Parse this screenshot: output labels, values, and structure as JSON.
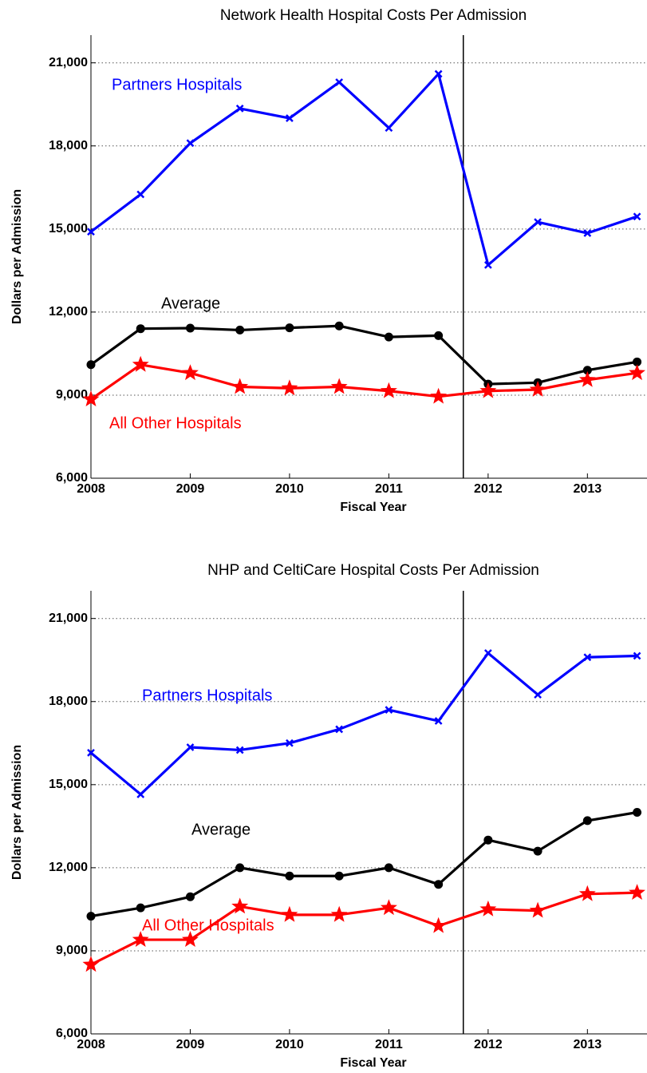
{
  "chart_data": [
    {
      "type": "line",
      "title": "Network Health Hospital Costs Per Admission",
      "xlabel": "Fiscal Year",
      "ylabel": "Dollars per Admission",
      "x": [
        2008,
        2008.5,
        2009,
        2009.5,
        2010,
        2010.5,
        2011,
        2011.5,
        2012,
        2012.5,
        2013,
        2013.5
      ],
      "xlim": [
        2008,
        2013.6
      ],
      "xticks": [
        2008,
        2009,
        2010,
        2011,
        2012,
        2013
      ],
      "ylim": [
        6000,
        22000
      ],
      "yticks": [
        {
          "value": 6000,
          "label": "6,000"
        },
        {
          "value": 9000,
          "label": "9,000"
        },
        {
          "value": 12000,
          "label": "12,000"
        },
        {
          "value": 15000,
          "label": "15,000"
        },
        {
          "value": 18000,
          "label": "18,000"
        },
        {
          "value": 21000,
          "label": "21,000"
        }
      ],
      "grid": true,
      "vline": 2011.75,
      "series": [
        {
          "name": "Partners Hospitals",
          "color": "#0000ff",
          "marker": "x",
          "values": [
            14900,
            16250,
            18100,
            19350,
            19000,
            20300,
            18650,
            20600,
            13700,
            15250,
            14850,
            15450
          ]
        },
        {
          "name": "Average",
          "color": "#000000",
          "marker": "o",
          "values": [
            10100,
            11400,
            11420,
            11350,
            11430,
            11500,
            11100,
            11150,
            9400,
            9450,
            9900,
            10200
          ]
        },
        {
          "name": "All Other Hospitals",
          "color": "#ff0000",
          "marker": "*",
          "values": [
            8850,
            10100,
            9800,
            9300,
            9250,
            9300,
            9150,
            8950,
            9150,
            9200,
            9550,
            9800
          ]
        }
      ]
    },
    {
      "type": "line",
      "title": "NHP and CeltiCare Hospital Costs Per Admission",
      "xlabel": "Fiscal Year",
      "ylabel": "Dollars per Admission",
      "x": [
        2008,
        2008.5,
        2009,
        2009.5,
        2010,
        2010.5,
        2011,
        2011.5,
        2012,
        2012.5,
        2013,
        2013.5
      ],
      "xlim": [
        2008,
        2013.6
      ],
      "xticks": [
        2008,
        2009,
        2010,
        2011,
        2012,
        2013
      ],
      "ylim": [
        6000,
        22000
      ],
      "yticks": [
        {
          "value": 6000,
          "label": "6,000"
        },
        {
          "value": 9000,
          "label": "9,000"
        },
        {
          "value": 12000,
          "label": "12,000"
        },
        {
          "value": 15000,
          "label": "15,000"
        },
        {
          "value": 18000,
          "label": "18,000"
        },
        {
          "value": 21000,
          "label": "21,000"
        }
      ],
      "grid": true,
      "vline": 2011.75,
      "series": [
        {
          "name": "Partners Hospitals",
          "color": "#0000ff",
          "marker": "x",
          "values": [
            16150,
            14650,
            16350,
            16250,
            16500,
            17000,
            17700,
            17300,
            19750,
            18250,
            19600,
            19650
          ]
        },
        {
          "name": "Average",
          "color": "#000000",
          "marker": "o",
          "values": [
            10250,
            10550,
            10950,
            12000,
            11700,
            11700,
            12000,
            11400,
            13000,
            12600,
            13700,
            14000
          ]
        },
        {
          "name": "All Other Hospitals",
          "color": "#ff0000",
          "marker": "*",
          "values": [
            8500,
            9400,
            9400,
            10600,
            10300,
            10300,
            10550,
            9900,
            10500,
            10450,
            11050,
            11100
          ]
        }
      ]
    }
  ]
}
